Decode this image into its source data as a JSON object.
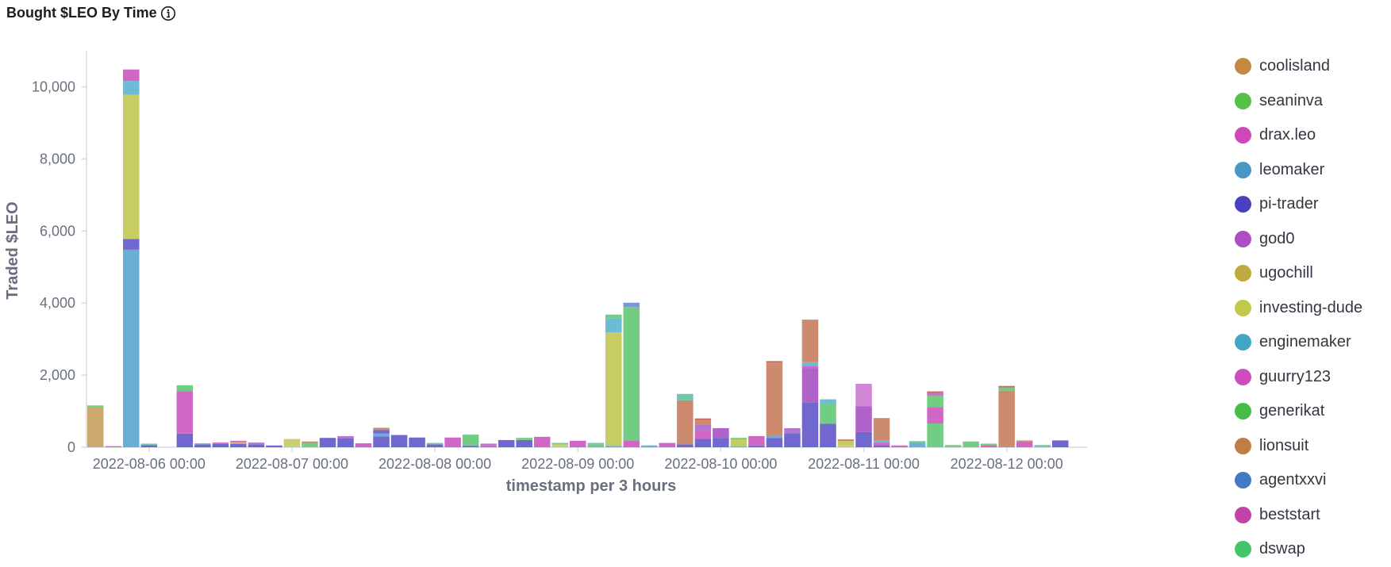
{
  "title": "Bought $LEO By Time",
  "info_icon": "info-icon",
  "chart_data": {
    "type": "bar",
    "stacked": true,
    "title": "Bought $LEO By Time",
    "xlabel": "timestamp per 3 hours",
    "ylabel": "Traded $LEO",
    "ylim": [
      0,
      11000
    ],
    "yticks": [
      0,
      2000,
      4000,
      6000,
      8000,
      10000
    ],
    "ytick_labels": [
      "0",
      "2,000",
      "4,000",
      "6,000",
      "8,000",
      "10,000"
    ],
    "xtick_labels": [
      "2022-08-06 00:00",
      "2022-08-07 00:00",
      "2022-08-08 00:00",
      "2022-08-09 00:00",
      "2022-08-10 00:00",
      "2022-08-11 00:00",
      "2022-08-12 00:00"
    ],
    "xtick_bins": [
      3.5,
      11.5,
      19.5,
      27.5,
      35.5,
      43.5,
      51.5
    ],
    "bins": 56,
    "grid": false,
    "legend_position": "right",
    "legend": [
      {
        "name": "coolisland",
        "color": "#c48843"
      },
      {
        "name": "seaninva",
        "color": "#54c247"
      },
      {
        "name": "drax.leo",
        "color": "#cd49b7"
      },
      {
        "name": "leomaker",
        "color": "#4b96c5"
      },
      {
        "name": "pi-trader",
        "color": "#4a3fbf"
      },
      {
        "name": "god0",
        "color": "#b04dc4"
      },
      {
        "name": "ugochill",
        "color": "#c0a93e"
      },
      {
        "name": "investing-dude",
        "color": "#c1c84a"
      },
      {
        "name": "enginemaker",
        "color": "#42a7c3"
      },
      {
        "name": "guurry123",
        "color": "#cc4dbe"
      },
      {
        "name": "generikat",
        "color": "#46bc46"
      },
      {
        "name": "lionsuit",
        "color": "#be7f45"
      },
      {
        "name": "agentxxvi",
        "color": "#4479c3"
      },
      {
        "name": "beststart",
        "color": "#c542a9"
      },
      {
        "name": "dswap",
        "color": "#45c46c"
      }
    ],
    "stacks": [
      [
        {
          "v": 1120,
          "c": "#cba86b"
        },
        {
          "v": 40,
          "c": "#6fcf7a"
        }
      ],
      [
        {
          "v": 30,
          "c": "#d067c5"
        }
      ],
      [
        {
          "v": 5480,
          "c": "#6aafd3"
        },
        {
          "v": 300,
          "c": "#7067cf"
        },
        {
          "v": 4000,
          "c": "#c7cd62"
        },
        {
          "v": 380,
          "c": "#6cbcd6"
        },
        {
          "v": 320,
          "c": "#d067c5"
        }
      ],
      [
        {
          "v": 60,
          "c": "#7067cf"
        },
        {
          "v": 40,
          "c": "#6fc6a8"
        }
      ],
      [
        {
          "v": 0,
          "c": "#ffffff"
        }
      ],
      [
        {
          "v": 380,
          "c": "#7067cf"
        },
        {
          "v": 1170,
          "c": "#d067c5"
        },
        {
          "v": 170,
          "c": "#72cd82"
        }
      ],
      [
        {
          "v": 80,
          "c": "#7067cf"
        },
        {
          "v": 30,
          "c": "#6cbcd6"
        }
      ],
      [
        {
          "v": 90,
          "c": "#7067cf"
        },
        {
          "v": 40,
          "c": "#d067c5"
        }
      ],
      [
        {
          "v": 90,
          "c": "#7067cf"
        },
        {
          "v": 60,
          "c": "#cba86b"
        },
        {
          "v": 30,
          "c": "#d067c5"
        }
      ],
      [
        {
          "v": 80,
          "c": "#7067cf"
        },
        {
          "v": 50,
          "c": "#b476cf"
        }
      ],
      [
        {
          "v": 50,
          "c": "#7067cf"
        }
      ],
      [
        {
          "v": 230,
          "c": "#cdcb74"
        }
      ],
      [
        {
          "v": 120,
          "c": "#72cd82"
        },
        {
          "v": 40,
          "c": "#cc8a6e"
        }
      ],
      [
        {
          "v": 260,
          "c": "#7067cf"
        }
      ],
      [
        {
          "v": 250,
          "c": "#7067cf"
        },
        {
          "v": 60,
          "c": "#b476cf"
        }
      ],
      [
        {
          "v": 110,
          "c": "#d067c5"
        }
      ],
      [
        {
          "v": 300,
          "c": "#7067cf"
        },
        {
          "v": 80,
          "c": "#6aafd3"
        },
        {
          "v": 100,
          "c": "#7067cf"
        },
        {
          "v": 60,
          "c": "#cc8a6e"
        }
      ],
      [
        {
          "v": 340,
          "c": "#7067cf"
        }
      ],
      [
        {
          "v": 270,
          "c": "#7067cf"
        }
      ],
      [
        {
          "v": 80,
          "c": "#7067cf"
        },
        {
          "v": 40,
          "c": "#6fc6a8"
        }
      ],
      [
        {
          "v": 270,
          "c": "#d067c5"
        }
      ],
      [
        {
          "v": 40,
          "c": "#7067cf"
        },
        {
          "v": 310,
          "c": "#72cd82"
        }
      ],
      [
        {
          "v": 60,
          "c": "#d067c5"
        },
        {
          "v": 40,
          "c": "#b476cf"
        }
      ],
      [
        {
          "v": 200,
          "c": "#7067cf"
        }
      ],
      [
        {
          "v": 200,
          "c": "#7067cf"
        },
        {
          "v": 60,
          "c": "#72cd82"
        }
      ],
      [
        {
          "v": 290,
          "c": "#d067c5"
        }
      ],
      [
        {
          "v": 80,
          "c": "#cdcb74"
        },
        {
          "v": 40,
          "c": "#72cd82"
        }
      ],
      [
        {
          "v": 180,
          "c": "#d067c5"
        }
      ],
      [
        {
          "v": 70,
          "c": "#72cd82"
        },
        {
          "v": 50,
          "c": "#6fc6a8"
        }
      ],
      [
        {
          "v": 40,
          "c": "#6aafd3"
        },
        {
          "v": 3150,
          "c": "#c7cd62"
        },
        {
          "v": 380,
          "c": "#6cbcd6"
        },
        {
          "v": 110,
          "c": "#72cd82"
        }
      ],
      [
        {
          "v": 190,
          "c": "#d067c5"
        },
        {
          "v": 3700,
          "c": "#72cd82"
        },
        {
          "v": 120,
          "c": "#7b98d6"
        }
      ],
      [
        {
          "v": 50,
          "c": "#6aafd3"
        }
      ],
      [
        {
          "v": 120,
          "c": "#d067c5"
        }
      ],
      [
        {
          "v": 80,
          "c": "#7067cf"
        },
        {
          "v": 1220,
          "c": "#cc8a6e"
        },
        {
          "v": 180,
          "c": "#6fc6a8"
        }
      ],
      [
        {
          "v": 230,
          "c": "#7067cf"
        },
        {
          "v": 230,
          "c": "#d067c5"
        },
        {
          "v": 170,
          "c": "#b476cf"
        },
        {
          "v": 130,
          "c": "#cc8a6e"
        },
        {
          "v": 40,
          "c": "#cc6666"
        }
      ],
      [
        {
          "v": 260,
          "c": "#7067cf"
        },
        {
          "v": 270,
          "c": "#b062c9"
        }
      ],
      [
        {
          "v": 40,
          "c": "#72cd82"
        },
        {
          "v": 180,
          "c": "#c7cd62"
        },
        {
          "v": 40,
          "c": "#72cd82"
        }
      ],
      [
        {
          "v": 50,
          "c": "#7067cf"
        },
        {
          "v": 260,
          "c": "#d067c5"
        }
      ],
      [
        {
          "v": 260,
          "c": "#7067cf"
        },
        {
          "v": 60,
          "c": "#6aafd3"
        },
        {
          "v": 2030,
          "c": "#cc8a6e"
        },
        {
          "v": 40,
          "c": "#cc6666"
        }
      ],
      [
        {
          "v": 390,
          "c": "#7067cf"
        },
        {
          "v": 140,
          "c": "#b476cf"
        }
      ],
      [
        {
          "v": 1240,
          "c": "#7067cf"
        },
        {
          "v": 950,
          "c": "#b062c9"
        },
        {
          "v": 70,
          "c": "#d067c5"
        },
        {
          "v": 100,
          "c": "#6cbcd6"
        },
        {
          "v": 1180,
          "c": "#cc8a6e"
        }
      ],
      [
        {
          "v": 650,
          "c": "#7067cf"
        },
        {
          "v": 550,
          "c": "#72cd82"
        },
        {
          "v": 130,
          "c": "#6cbcd6"
        }
      ],
      [
        {
          "v": 40,
          "c": "#cdcb74"
        },
        {
          "v": 130,
          "c": "#c7cd62"
        },
        {
          "v": 50,
          "c": "#cc8a6e"
        }
      ],
      [
        {
          "v": 420,
          "c": "#7067cf"
        },
        {
          "v": 720,
          "c": "#b062c9"
        },
        {
          "v": 620,
          "c": "#d087d6"
        }
      ],
      [
        {
          "v": 60,
          "c": "#7067cf"
        },
        {
          "v": 70,
          "c": "#d067c5"
        },
        {
          "v": 60,
          "c": "#6cbcd6"
        },
        {
          "v": 620,
          "c": "#cc8a6e"
        }
      ],
      [
        {
          "v": 50,
          "c": "#d067c5"
        }
      ],
      [
        {
          "v": 110,
          "c": "#6aafd3"
        },
        {
          "v": 60,
          "c": "#6fc6a8"
        }
      ],
      [
        {
          "v": 660,
          "c": "#72cd82"
        },
        {
          "v": 450,
          "c": "#d067c5"
        },
        {
          "v": 330,
          "c": "#72cd82"
        },
        {
          "v": 70,
          "c": "#d067c5"
        },
        {
          "v": 40,
          "c": "#cc6666"
        }
      ],
      [
        {
          "v": 60,
          "c": "#72cd82"
        }
      ],
      [
        {
          "v": 160,
          "c": "#72cd82"
        }
      ],
      [
        {
          "v": 60,
          "c": "#d067c5"
        },
        {
          "v": 40,
          "c": "#72cd82"
        }
      ],
      [
        {
          "v": 1570,
          "c": "#cc8a6e"
        },
        {
          "v": 90,
          "c": "#72cd82"
        },
        {
          "v": 40,
          "c": "#cc6666"
        }
      ],
      [
        {
          "v": 160,
          "c": "#d067c5"
        },
        {
          "v": 30,
          "c": "#cc8a6e"
        }
      ],
      [
        {
          "v": 60,
          "c": "#6fc6a8"
        }
      ],
      [
        {
          "v": 190,
          "c": "#7067cf"
        }
      ],
      [
        {
          "v": 0,
          "c": "#ffffff"
        }
      ],
      [
        {
          "v": 0,
          "c": "#ffffff"
        }
      ]
    ]
  }
}
